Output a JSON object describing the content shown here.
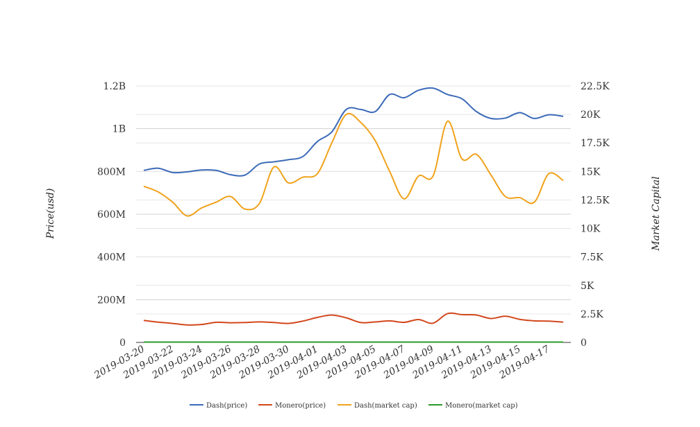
{
  "chart_data": {
    "type": "line",
    "title": "",
    "xlabel": "",
    "ylabel": "Price(usd)",
    "y2label": "Market Capital",
    "ylim": [
      0,
      1200000000
    ],
    "y2lim": [
      0,
      22500
    ],
    "y_ticks": [
      {
        "value": 0,
        "label": "0"
      },
      {
        "value": 200000000,
        "label": "200M"
      },
      {
        "value": 400000000,
        "label": "400M"
      },
      {
        "value": 600000000,
        "label": "600M"
      },
      {
        "value": 800000000,
        "label": "800M"
      },
      {
        "value": 1000000000,
        "label": "1B"
      },
      {
        "value": 1200000000,
        "label": "1.2B"
      }
    ],
    "y2_ticks": [
      {
        "value": 0,
        "label": "0"
      },
      {
        "value": 2500,
        "label": "2.5K"
      },
      {
        "value": 5000,
        "label": "5K"
      },
      {
        "value": 7500,
        "label": "7.5K"
      },
      {
        "value": 10000,
        "label": "10K"
      },
      {
        "value": 12500,
        "label": "12.5K"
      },
      {
        "value": 15000,
        "label": "15K"
      },
      {
        "value": 17500,
        "label": "17.5K"
      },
      {
        "value": 20000,
        "label": "20K"
      },
      {
        "value": 22500,
        "label": "22.5K"
      }
    ],
    "x": [
      "2019-03-20",
      "2019-03-21",
      "2019-03-22",
      "2019-03-23",
      "2019-03-24",
      "2019-03-25",
      "2019-03-26",
      "2019-03-27",
      "2019-03-28",
      "2019-03-29",
      "2019-03-30",
      "2019-03-31",
      "2019-04-01",
      "2019-04-02",
      "2019-04-03",
      "2019-04-04",
      "2019-04-05",
      "2019-04-06",
      "2019-04-07",
      "2019-04-08",
      "2019-04-09",
      "2019-04-10",
      "2019-04-11",
      "2019-04-12",
      "2019-04-13",
      "2019-04-14",
      "2019-04-15",
      "2019-04-16",
      "2019-04-17",
      "2019-04-18"
    ],
    "x_tick_labels": [
      "2019-03-20",
      "2019-03-22",
      "2019-03-24",
      "2019-03-26",
      "2019-03-28",
      "2019-03-30",
      "2019-04-01",
      "2019-04-03",
      "2019-04-05",
      "2019-04-07",
      "2019-04-09",
      "2019-04-11",
      "2019-04-13",
      "2019-04-15",
      "2019-04-17"
    ],
    "grid": true,
    "legend_position": "bottom",
    "series": [
      {
        "name": "Dash(price)",
        "axis": "left",
        "color": "#3b6ab8",
        "values": [
          805000000,
          815000000,
          795000000,
          798000000,
          807000000,
          805000000,
          785000000,
          783000000,
          835000000,
          845000000,
          855000000,
          870000000,
          940000000,
          985000000,
          1090000000,
          1090000000,
          1080000000,
          1160000000,
          1145000000,
          1180000000,
          1190000000,
          1160000000,
          1140000000,
          1080000000,
          1048000000,
          1050000000,
          1075000000,
          1048000000,
          1065000000,
          1058000000
        ]
      },
      {
        "name": "Monero(price)",
        "axis": "left",
        "color": "#d2471c",
        "values": [
          103000000,
          95000000,
          89000000,
          82000000,
          84000000,
          94000000,
          92000000,
          93000000,
          96000000,
          93000000,
          89000000,
          100000000,
          117000000,
          128000000,
          115000000,
          93000000,
          96000000,
          101000000,
          94000000,
          107000000,
          90000000,
          135000000,
          130000000,
          128000000,
          112000000,
          123000000,
          108000000,
          101000000,
          100000000,
          95000000
        ]
      },
      {
        "name": "Dash(market cap)",
        "axis": "right",
        "color": "#f0a21a",
        "values": [
          13700,
          13200,
          12300,
          11100,
          11800,
          12300,
          12800,
          11700,
          12200,
          15400,
          14000,
          14500,
          14800,
          17500,
          20000,
          19300,
          17700,
          15000,
          12600,
          14600,
          14600,
          19400,
          16100,
          16500,
          14700,
          12800,
          12700,
          12300,
          14800,
          14200
        ]
      },
      {
        "name": "Monero(market cap)",
        "axis": "right",
        "color": "#2a9a2a",
        "values": [
          30,
          30,
          30,
          30,
          30,
          30,
          30,
          30,
          30,
          30,
          30,
          30,
          30,
          30,
          30,
          30,
          30,
          30,
          30,
          30,
          30,
          30,
          30,
          30,
          30,
          30,
          30,
          30,
          30,
          30
        ]
      }
    ]
  }
}
